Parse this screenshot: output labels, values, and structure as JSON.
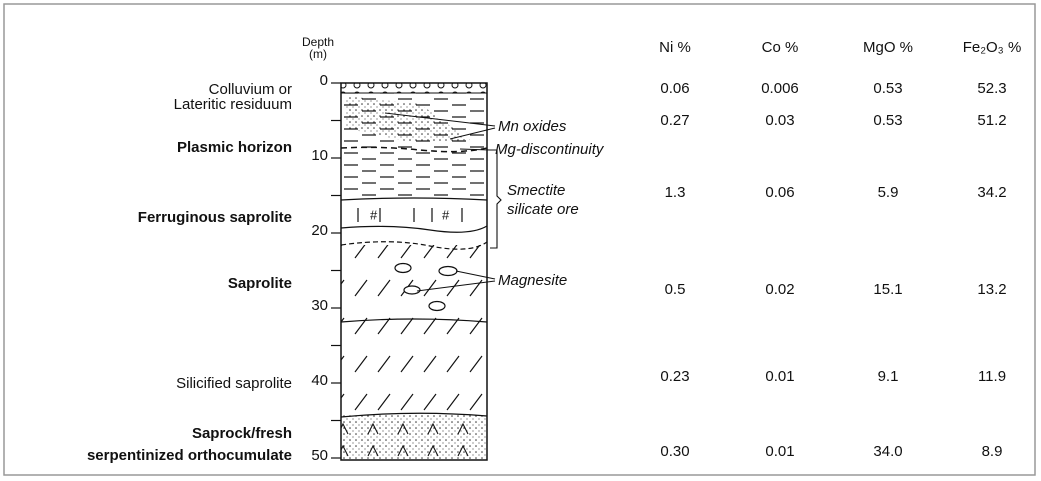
{
  "depth_axis": {
    "title": "Depth",
    "unit": "(m)",
    "labels": [
      "0",
      "10",
      "20",
      "30",
      "40",
      "50"
    ]
  },
  "layers": {
    "colluvium": [
      "Colluvium or",
      "Lateritic residuum"
    ],
    "plasmic": "Plasmic horizon",
    "ferruginous": "Ferruginous saprolite",
    "saprolite": "Saprolite",
    "silicified": "Silicified saprolite",
    "saprock": [
      "Saprock/fresh",
      "serpentinized orthocumulate"
    ]
  },
  "annotations": {
    "mn": "Mn oxides",
    "mg": "Mg-discontinuity",
    "smectite": [
      "Smectite",
      "silicate ore"
    ],
    "magnesite": "Magnesite"
  },
  "table": {
    "headers": [
      "Ni %",
      "Co %",
      "MgO %",
      "Fe₂O₃ %"
    ],
    "rows": [
      [
        "0.06",
        "0.006",
        "0.53",
        "52.3"
      ],
      [
        "0.27",
        "0.03",
        "0.53",
        "51.2"
      ],
      [
        "1.3",
        "0.06",
        "5.9",
        "34.2"
      ],
      [
        "0.5",
        "0.02",
        "15.1",
        "13.2"
      ],
      [
        "0.23",
        "0.01",
        "9.1",
        "11.9"
      ],
      [
        "0.30",
        "0.01",
        "34.0",
        "8.9"
      ]
    ]
  }
}
